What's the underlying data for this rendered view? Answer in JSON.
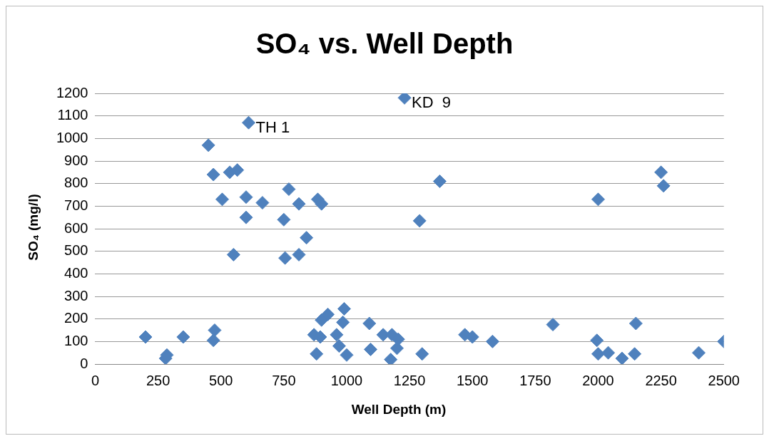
{
  "chart_data": {
    "type": "scatter",
    "title": "SO₄ vs. Well Depth",
    "xlabel": "Well Depth (m)",
    "ylabel": "SO₄ (mg/l)",
    "x": [
      200,
      280,
      285,
      350,
      470,
      475,
      450,
      470,
      505,
      535,
      565,
      550,
      600,
      600,
      610,
      665,
      750,
      755,
      770,
      810,
      810,
      840,
      870,
      880,
      895,
      885,
      900,
      900,
      925,
      960,
      970,
      985,
      990,
      1000,
      1090,
      1095,
      1145,
      1175,
      1180,
      1200,
      1205,
      1230,
      1290,
      1300,
      1370,
      1470,
      1500,
      1580,
      1820,
      1995,
      2000,
      2000,
      2040,
      2095,
      2145,
      2150,
      2250,
      2260,
      2400,
      2500
    ],
    "series": [
      {
        "color": "#4f81bd",
        "values": [
          120,
          25,
          40,
          120,
          105,
          150,
          970,
          840,
          730,
          850,
          860,
          485,
          740,
          650,
          1070,
          715,
          640,
          470,
          775,
          710,
          485,
          560,
          130,
          45,
          120,
          730,
          710,
          195,
          220,
          130,
          80,
          185,
          245,
          40,
          180,
          65,
          130,
          20,
          130,
          70,
          110,
          1180,
          635,
          45,
          810,
          130,
          120,
          100,
          175,
          105,
          45,
          730,
          50,
          25,
          45,
          180,
          850,
          790,
          50,
          100
        ]
      }
    ],
    "annotations": [
      {
        "text": "TH 1",
        "x": 610,
        "y": 1070
      },
      {
        "text": "KD  9",
        "x": 1230,
        "y": 1180
      }
    ],
    "xlim": [
      0,
      2500
    ],
    "xticks": [
      0,
      250,
      500,
      750,
      1000,
      1250,
      1500,
      1750,
      2000,
      2250,
      2500
    ],
    "ylim": [
      0,
      1200
    ],
    "yticks": [
      0,
      100,
      200,
      300,
      400,
      500,
      600,
      700,
      800,
      900,
      1000,
      1100,
      1200
    ],
    "grid": "y",
    "legend": false,
    "marker": "diamond"
  }
}
